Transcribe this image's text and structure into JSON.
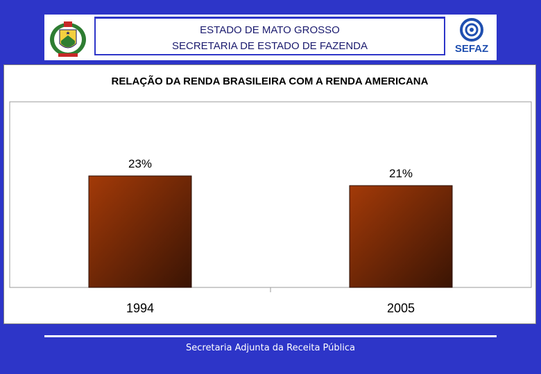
{
  "header": {
    "line1": "ESTADO DE MATO GROSSO",
    "line2": "SECRETARIA DE ESTADO DE FAZENDA",
    "logo_text": "SEFAZ"
  },
  "footer": {
    "text": "Secretaria Adjunta da Receita Pública"
  },
  "colors": {
    "background": "#2d35c8",
    "bar_light": "#a33a08",
    "bar_dark": "#3a1404"
  },
  "chart_data": {
    "type": "bar",
    "title": "RELAÇÃO DA RENDA BRASILEIRA COM A RENDA AMERICANA",
    "categories": [
      "1994",
      "2005"
    ],
    "values": [
      23,
      21
    ],
    "data_labels": [
      "23%",
      "21%"
    ],
    "xlabel": "",
    "ylabel": "",
    "grid": false,
    "legend": "none"
  }
}
